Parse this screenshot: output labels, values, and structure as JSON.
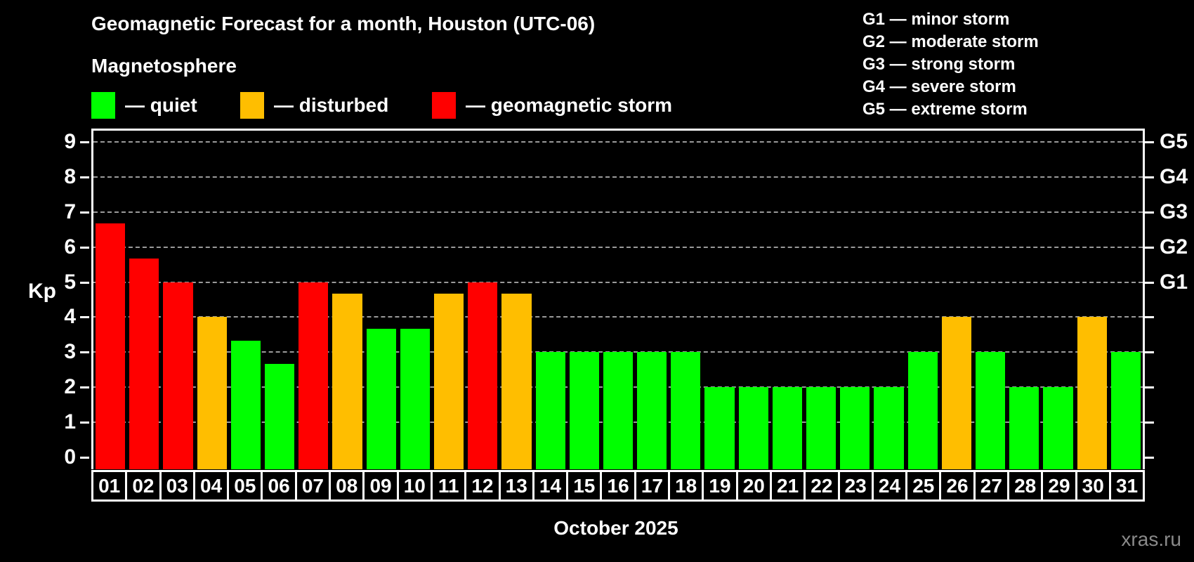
{
  "header": {
    "title": "Geomagnetic Forecast for a month, Houston (UTC-06)",
    "subtitle": "Magnetosphere"
  },
  "legend": {
    "items": [
      {
        "key": "quiet",
        "label": "— quiet",
        "color": "#00ff00"
      },
      {
        "key": "disturbed",
        "label": "— disturbed",
        "color": "#ffbe00"
      },
      {
        "key": "storm",
        "label": "— geomagnetic storm",
        "color": "#ff0000"
      }
    ]
  },
  "storm_scale": {
    "lines": [
      "G1 — minor storm",
      "G2 — moderate storm",
      "G3 — strong storm",
      "G4 — severe storm",
      "G5 — extreme storm"
    ]
  },
  "chart_data": {
    "type": "bar",
    "title": "Geomagnetic Forecast for a month, Houston (UTC-06)",
    "subtitle": "Magnetosphere",
    "xlabel": "October 2025",
    "ylabel": "Kp",
    "ylim": [
      0,
      9.4
    ],
    "grid": "horizontal-dashed",
    "legend_position": "top-left",
    "categories": [
      "01",
      "02",
      "03",
      "04",
      "05",
      "06",
      "07",
      "08",
      "09",
      "10",
      "11",
      "12",
      "13",
      "14",
      "15",
      "16",
      "17",
      "18",
      "19",
      "20",
      "21",
      "22",
      "23",
      "24",
      "25",
      "26",
      "27",
      "28",
      "29",
      "30",
      "31"
    ],
    "values": [
      6.67,
      5.67,
      5,
      4,
      3.33,
      2.67,
      5,
      4.67,
      3.67,
      3.67,
      4.67,
      5,
      4.67,
      3,
      3,
      3,
      3,
      3,
      2,
      2,
      2,
      2,
      2,
      2,
      3,
      4,
      3,
      2,
      2,
      4,
      3
    ],
    "statuses": [
      "storm",
      "storm",
      "storm",
      "disturbed",
      "quiet",
      "quiet",
      "storm",
      "disturbed",
      "quiet",
      "quiet",
      "disturbed",
      "storm",
      "disturbed",
      "quiet",
      "quiet",
      "quiet",
      "quiet",
      "quiet",
      "quiet",
      "quiet",
      "quiet",
      "quiet",
      "quiet",
      "quiet",
      "quiet",
      "disturbed",
      "quiet",
      "quiet",
      "quiet",
      "disturbed",
      "quiet"
    ],
    "colors": {
      "quiet": "#00ff00",
      "disturbed": "#ffbe00",
      "storm": "#ff0000"
    },
    "y_ticks": [
      0,
      1,
      2,
      3,
      4,
      5,
      6,
      7,
      8,
      9
    ],
    "right_axis_labels": [
      {
        "kp": 5,
        "label": "G1"
      },
      {
        "kp": 6,
        "label": "G2"
      },
      {
        "kp": 7,
        "label": "G3"
      },
      {
        "kp": 8,
        "label": "G4"
      },
      {
        "kp": 9,
        "label": "G5"
      }
    ]
  },
  "footer": {
    "month_label": "October 2025",
    "watermark": "xras.ru"
  }
}
